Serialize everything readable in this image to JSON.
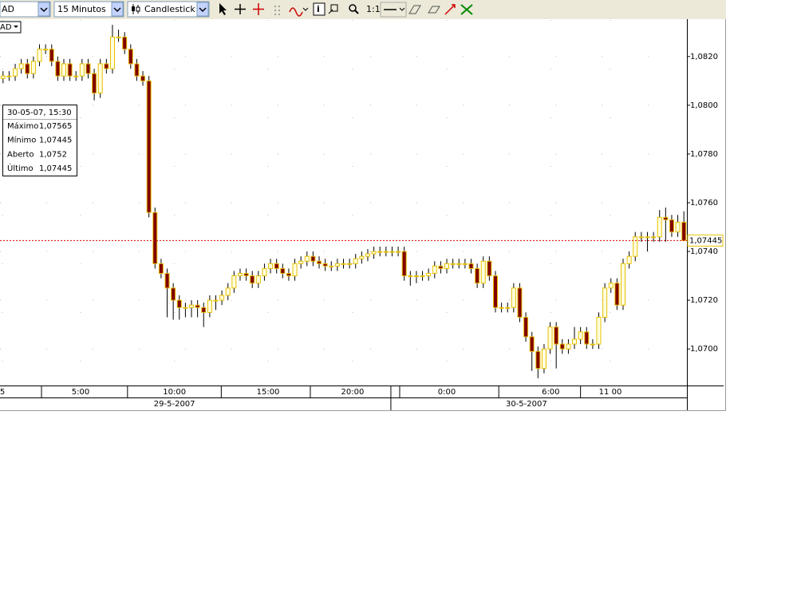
{
  "toolbar": {
    "symbol": "AD",
    "interval": "15 Minutos",
    "chart_style": "Candlestick",
    "zoom_label": "1:1"
  },
  "tooltip": {
    "title": "30-05-07, 15:30",
    "rows": [
      [
        "Máximo",
        "1,07565"
      ],
      [
        "Mínimo",
        "1,07445"
      ],
      [
        "Aberto",
        "1,0752"
      ],
      [
        "Último",
        "1,07445"
      ]
    ]
  },
  "chart_data": {
    "type": "candlestick",
    "symbol": "AD",
    "up_color": "#ffffe0",
    "down_color": "#800000",
    "outline_color": "#e8c000",
    "grid": true,
    "ylim": [
      1.0685,
      1.0835
    ],
    "yticks": [
      {
        "value": 1.07,
        "label": "1,0700"
      },
      {
        "value": 1.072,
        "label": "1,0720"
      },
      {
        "value": 1.074,
        "label": "1,0740"
      },
      {
        "value": 1.076,
        "label": "1,0760"
      },
      {
        "value": 1.078,
        "label": "1,0780"
      },
      {
        "value": 1.08,
        "label": "1,0800"
      },
      {
        "value": 1.082,
        "label": "1,0820"
      }
    ],
    "xlim": [
      -0.5,
      112.5
    ],
    "xticks": [
      {
        "value": -0.1,
        "label": "5"
      },
      {
        "value": 12.75,
        "label": "5:00"
      },
      {
        "value": 28.2,
        "label": "10:00"
      },
      {
        "value": 43.6,
        "label": "15:00"
      },
      {
        "value": 57.5,
        "label": "20:00"
      },
      {
        "value": 73,
        "label": "0:00"
      },
      {
        "value": 90.1,
        "label": "6:00"
      },
      {
        "value": 99.9,
        "label": "11 00"
      }
    ],
    "date_labels": [
      {
        "value": 28.2,
        "label": "29-5-2007"
      },
      {
        "value": 86.1,
        "label": "30-5-2007"
      }
    ],
    "date_separator": 63.8,
    "last_price": {
      "value": 1.07445,
      "label": "1,07445"
    },
    "open": [
      1.0811,
      1.0812,
      1.0812,
      1.0815,
      1.0817,
      1.0813,
      1.0818,
      1.0823,
      1.0823,
      1.0818,
      1.0812,
      1.0817,
      1.0812,
      1.0812,
      1.0817,
      1.0813,
      1.0805,
      1.0817,
      1.0815,
      1.0828,
      1.0828,
      1.0823,
      1.0817,
      1.0812,
      1.081,
      1.0756,
      1.0735,
      1.0731,
      1.0725,
      1.072,
      1.0717,
      1.0717,
      1.0718,
      1.0717,
      1.0715,
      1.072,
      1.072,
      1.0722,
      1.0725,
      1.073,
      1.0731,
      1.073,
      1.0727,
      1.073,
      1.0733,
      1.0735,
      1.0733,
      1.0731,
      1.073,
      1.0735,
      1.0736,
      1.0738,
      1.0736,
      1.0735,
      1.0734,
      1.0734,
      1.0735,
      1.0735,
      1.0735,
      1.0737,
      1.0738,
      1.0739,
      1.074,
      1.074,
      1.074,
      1.074,
      1.074,
      1.073,
      1.073,
      1.073,
      1.073,
      1.0731,
      1.0734,
      1.0733,
      1.0735,
      1.0735,
      1.0735,
      1.0735,
      1.0733,
      1.0727,
      1.0736,
      1.073,
      1.0717,
      1.0717,
      1.0717,
      1.0725,
      1.0713,
      1.0705,
      1.0699,
      1.0692,
      1.07,
      1.0709,
      1.0702,
      1.07,
      1.0702,
      1.0704,
      1.0707,
      1.0702,
      1.0702,
      1.0713,
      1.0725,
      1.0727,
      1.0718,
      1.0735,
      1.0738,
      1.0746,
      1.0746,
      1.0746,
      1.0746,
      1.0754,
      1.0753,
      1.0748,
      1.0752
    ],
    "high": [
      1.0814,
      1.0814,
      1.0817,
      1.0819,
      1.0819,
      1.082,
      1.0825,
      1.0825,
      1.0825,
      1.082,
      1.0819,
      1.0819,
      1.0814,
      1.0819,
      1.0819,
      1.0815,
      1.0819,
      1.0819,
      1.0833,
      1.0831,
      1.083,
      1.0825,
      1.0819,
      1.0814,
      1.0812,
      1.0758,
      1.0737,
      1.0733,
      1.0727,
      1.0722,
      1.0719,
      1.072,
      1.072,
      1.0719,
      1.0722,
      1.0722,
      1.0724,
      1.0727,
      1.0732,
      1.0733,
      1.0733,
      1.0732,
      1.0732,
      1.0735,
      1.0737,
      1.0737,
      1.0735,
      1.0733,
      1.0737,
      1.0738,
      1.074,
      1.074,
      1.0738,
      1.0737,
      1.0736,
      1.0737,
      1.0737,
      1.0737,
      1.0739,
      1.074,
      1.0741,
      1.0742,
      1.0742,
      1.0742,
      1.0742,
      1.0742,
      1.0742,
      1.0732,
      1.0732,
      1.0732,
      1.0733,
      1.0736,
      1.0736,
      1.0737,
      1.0737,
      1.0737,
      1.0737,
      1.0737,
      1.0735,
      1.0738,
      1.0738,
      1.0732,
      1.0719,
      1.0719,
      1.0727,
      1.0727,
      1.0715,
      1.0707,
      1.0701,
      1.0702,
      1.0711,
      1.0711,
      1.0704,
      1.0704,
      1.0709,
      1.0709,
      1.0709,
      1.0704,
      1.0715,
      1.0727,
      1.0729,
      1.0729,
      1.0737,
      1.074,
      1.0748,
      1.0748,
      1.0748,
      1.0748,
      1.0757,
      1.0758,
      1.0755,
      1.0755,
      1.07565
    ],
    "low": [
      1.0809,
      1.081,
      1.081,
      1.0813,
      1.0811,
      1.0811,
      1.0816,
      1.0821,
      1.0816,
      1.081,
      1.081,
      1.081,
      1.081,
      1.081,
      1.0811,
      1.0802,
      1.0803,
      1.0813,
      1.0813,
      1.0826,
      1.0821,
      1.0815,
      1.081,
      1.0808,
      1.0754,
      1.0733,
      1.0729,
      1.0713,
      1.0712,
      1.0712,
      1.0713,
      1.0713,
      1.0713,
      1.0709,
      1.0713,
      1.0716,
      1.0718,
      1.072,
      1.0723,
      1.0728,
      1.0728,
      1.0725,
      1.0725,
      1.0728,
      1.0731,
      1.0731,
      1.0729,
      1.0728,
      1.0728,
      1.0733,
      1.0734,
      1.0734,
      1.0733,
      1.0732,
      1.0732,
      1.0732,
      1.0733,
      1.0733,
      1.0733,
      1.0735,
      1.0736,
      1.0737,
      1.0738,
      1.0738,
      1.0738,
      1.0738,
      1.0728,
      1.0726,
      1.0727,
      1.0728,
      1.0728,
      1.0729,
      1.0731,
      1.0731,
      1.0733,
      1.0733,
      1.0733,
      1.0731,
      1.0725,
      1.0725,
      1.0728,
      1.0715,
      1.0715,
      1.0715,
      1.0715,
      1.0711,
      1.0703,
      1.0691,
      1.0688,
      1.069,
      1.0698,
      1.0692,
      1.0698,
      1.0698,
      1.07,
      1.0702,
      1.07,
      1.07,
      1.07,
      1.0711,
      1.0723,
      1.0716,
      1.0716,
      1.0733,
      1.0736,
      1.0744,
      1.074,
      1.0744,
      1.0744,
      1.0744,
      1.0746,
      1.0746,
      1.07445
    ],
    "close": [
      1.0812,
      1.0812,
      1.0815,
      1.0817,
      1.0813,
      1.0818,
      1.0823,
      1.0823,
      1.0818,
      1.0812,
      1.0817,
      1.0812,
      1.0812,
      1.0817,
      1.0813,
      1.0805,
      1.0817,
      1.0815,
      1.0828,
      1.0828,
      1.0823,
      1.0817,
      1.0812,
      1.081,
      1.0756,
      1.0735,
      1.0731,
      1.0725,
      1.072,
      1.0717,
      1.0717,
      1.0718,
      1.0717,
      1.0715,
      1.072,
      1.072,
      1.0722,
      1.0725,
      1.073,
      1.0731,
      1.073,
      1.0727,
      1.073,
      1.0733,
      1.0735,
      1.0733,
      1.0731,
      1.073,
      1.0735,
      1.0736,
      1.0738,
      1.0736,
      1.0735,
      1.0734,
      1.0734,
      1.0735,
      1.0735,
      1.0735,
      1.0737,
      1.0738,
      1.0739,
      1.074,
      1.074,
      1.074,
      1.074,
      1.074,
      1.073,
      1.073,
      1.073,
      1.073,
      1.0731,
      1.0734,
      1.0733,
      1.0735,
      1.0735,
      1.0735,
      1.0735,
      1.0733,
      1.0727,
      1.0736,
      1.073,
      1.0717,
      1.0717,
      1.0717,
      1.0725,
      1.0713,
      1.0705,
      1.0699,
      1.0692,
      1.07,
      1.0709,
      1.0702,
      1.07,
      1.0702,
      1.0704,
      1.0707,
      1.0702,
      1.0702,
      1.0713,
      1.0725,
      1.0727,
      1.0718,
      1.0735,
      1.0738,
      1.0746,
      1.0746,
      1.0746,
      1.0746,
      1.0754,
      1.0753,
      1.0748,
      1.0752,
      1.07445
    ]
  }
}
